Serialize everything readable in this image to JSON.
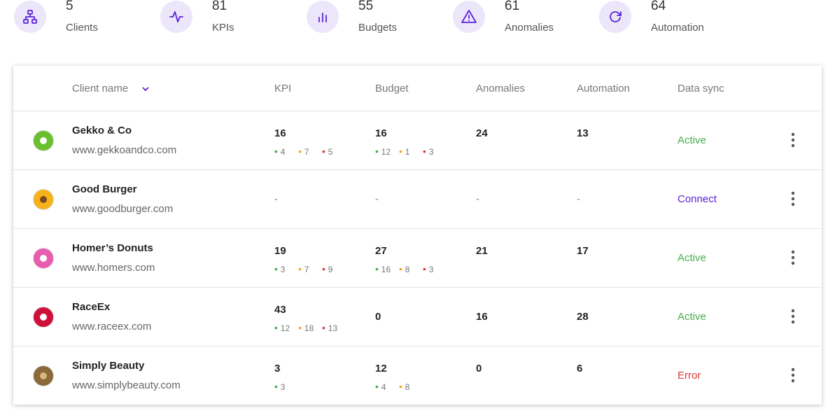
{
  "stats": [
    {
      "value": 5,
      "label": "Clients"
    },
    {
      "value": 81,
      "label": "KPIs"
    },
    {
      "value": 55,
      "label": "Budgets"
    },
    {
      "value": 61,
      "label": "Anomalies"
    },
    {
      "value": 64,
      "label": "Automation"
    }
  ],
  "table": {
    "headers": [
      "Client name",
      "KPI",
      "Budget",
      "Anomalies",
      "Automation",
      "Data sync"
    ],
    "breakdown_colors": [
      "#43b04a",
      "#f5a623",
      "#e03a3a"
    ],
    "rows": [
      {
        "name": "Gekko & Co",
        "url": "www.gekkoandco.com",
        "kpi": 16,
        "kpi_breakdown": [
          4,
          7,
          5
        ],
        "budget": 16,
        "budget_breakdown": [
          12,
          1,
          3
        ],
        "anomalies": 24,
        "automation": 13,
        "sync": "Active",
        "sync_color": "#43b04a"
      },
      {
        "name": "Good Burger",
        "url": "www.goodburger.com",
        "kpi": "-",
        "kpi_breakdown": [],
        "budget": "-",
        "budget_breakdown": [],
        "anomalies": "-",
        "automation": "-",
        "sync": "Connect",
        "sync_color": "#5b21d6"
      },
      {
        "name": "Homer’s Donuts",
        "url": "www.homers.com",
        "kpi": 19,
        "kpi_breakdown": [
          3,
          7,
          9
        ],
        "budget": 27,
        "budget_breakdown": [
          16,
          8,
          3
        ],
        "anomalies": 21,
        "automation": 17,
        "sync": "Active",
        "sync_color": "#43b04a"
      },
      {
        "name": "RaceEx",
        "url": "www.raceex.com",
        "kpi": 43,
        "kpi_breakdown": [
          12,
          18,
          13
        ],
        "budget": 0,
        "budget_breakdown": [],
        "anomalies": 16,
        "automation": 28,
        "sync": "Active",
        "sync_color": "#43b04a"
      },
      {
        "name": "Simply Beauty",
        "url": "www.simplybeauty.com",
        "kpi": 3,
        "kpi_breakdown": [
          3
        ],
        "budget": 12,
        "budget_breakdown": [
          4,
          8
        ],
        "anomalies": 0,
        "automation": 6,
        "sync": "Error",
        "sync_color": "#e03a3a"
      }
    ]
  }
}
